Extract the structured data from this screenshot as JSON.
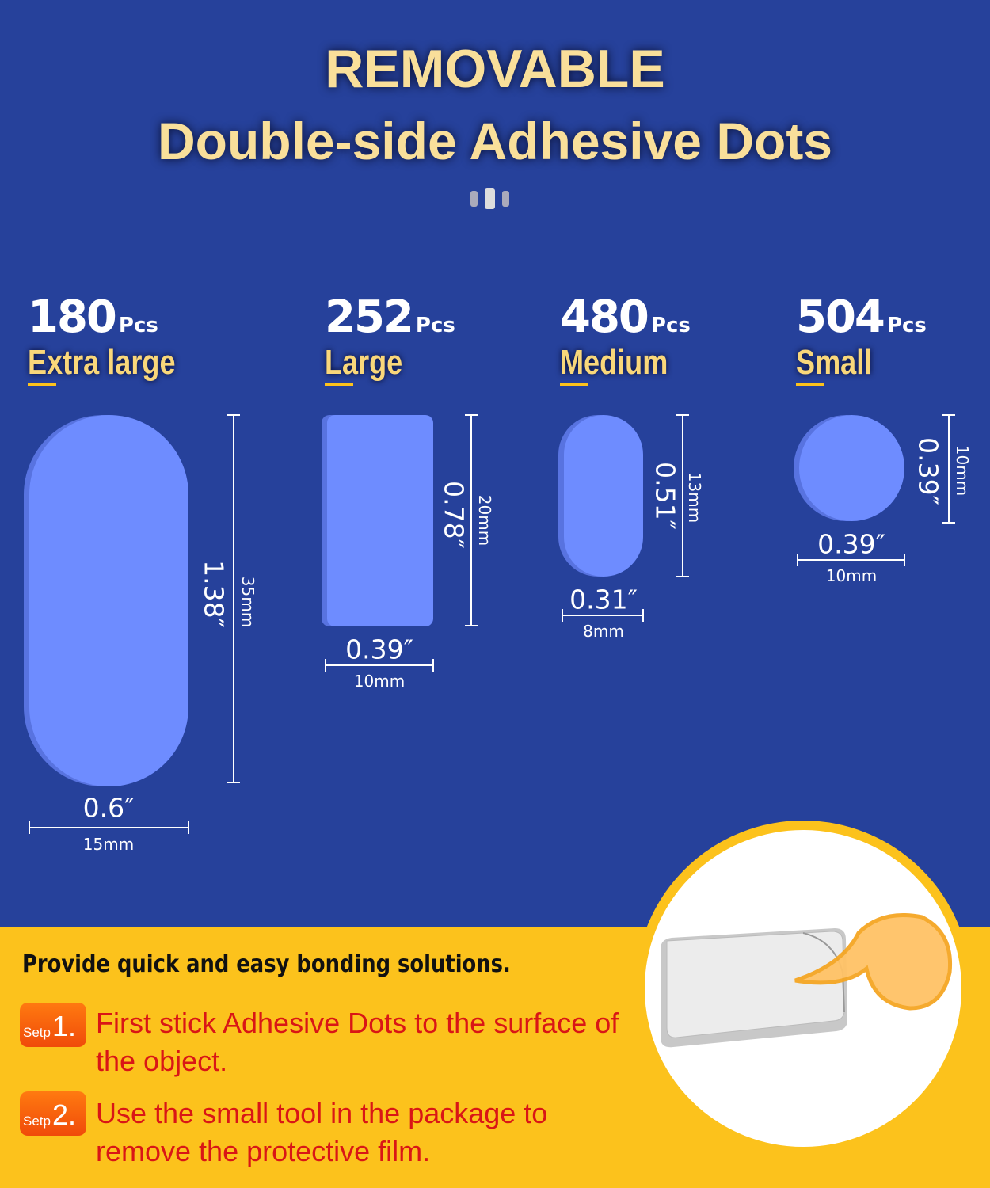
{
  "header": {
    "title": "REMOVABLE",
    "subtitle": "Double-side Adhesive Dots"
  },
  "colors": {
    "background": "#26419b",
    "dot": "#6e8cff",
    "band": "#fcc21c",
    "title": "#f9df9a",
    "step_text": "#d91616"
  },
  "sizes": [
    {
      "count": "180",
      "unit": "Pcs",
      "name": "Extra large",
      "height_in": "1.38″",
      "height_mm": "35mm",
      "width_in": "0.6″",
      "width_mm": "15mm",
      "shape": "pill"
    },
    {
      "count": "252",
      "unit": "Pcs",
      "name": "Large",
      "height_in": "0.78″",
      "height_mm": "20mm",
      "width_in": "0.39″",
      "width_mm": "10mm",
      "shape": "rectangle"
    },
    {
      "count": "480",
      "unit": "Pcs",
      "name": "Medium",
      "height_in": "0.51″",
      "height_mm": "13mm",
      "width_in": "0.31″",
      "width_mm": "8mm",
      "shape": "pill"
    },
    {
      "count": "504",
      "unit": "Pcs",
      "name": "Small",
      "height_in": "0.39″",
      "height_mm": "10mm",
      "width_in": "0.39″",
      "width_mm": "10mm",
      "shape": "circle"
    }
  ],
  "instructions": {
    "headline": "Provide quick and easy bonding solutions.",
    "steps": [
      {
        "label": "Setp",
        "number": "1.",
        "text": "First stick Adhesive Dots to the surface of the object."
      },
      {
        "label": "Setp",
        "number": "2.",
        "text": "Use the small tool in the package to remove the protective film."
      }
    ]
  }
}
